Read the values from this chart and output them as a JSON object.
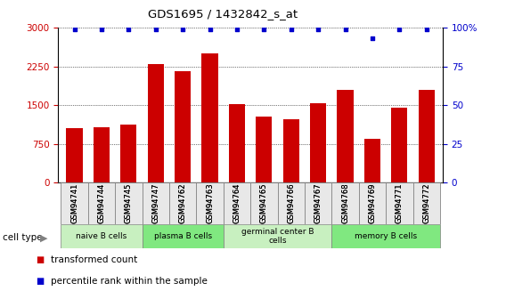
{
  "title": "GDS1695 / 1432842_s_at",
  "samples": [
    "GSM94741",
    "GSM94744",
    "GSM94745",
    "GSM94747",
    "GSM94762",
    "GSM94763",
    "GSM94764",
    "GSM94765",
    "GSM94766",
    "GSM94767",
    "GSM94768",
    "GSM94769",
    "GSM94771",
    "GSM94772"
  ],
  "transformed_count": [
    1050,
    1080,
    1130,
    2300,
    2150,
    2500,
    1520,
    1280,
    1220,
    1540,
    1800,
    850,
    1450,
    1800
  ],
  "percentile_rank": [
    99,
    99,
    99,
    99,
    99,
    99,
    99,
    99,
    99,
    99,
    99,
    93,
    99,
    99
  ],
  "ylim_left": [
    0,
    3000
  ],
  "ylim_right": [
    0,
    100
  ],
  "yticks_left": [
    0,
    750,
    1500,
    2250,
    3000
  ],
  "yticks_right": [
    0,
    25,
    50,
    75,
    100
  ],
  "cell_type_groups": [
    {
      "label": "naive B cells",
      "start": 0,
      "end": 2,
      "color": "#c8f0c0"
    },
    {
      "label": "plasma B cells",
      "start": 3,
      "end": 5,
      "color": "#80e880"
    },
    {
      "label": "germinal center B\ncells",
      "start": 6,
      "end": 9,
      "color": "#c8f0c0"
    },
    {
      "label": "memory B cells",
      "start": 10,
      "end": 13,
      "color": "#80e880"
    }
  ],
  "bar_color": "#cc0000",
  "dot_color": "#0000cc",
  "left_tick_color": "#cc0000",
  "right_tick_color": "#0000cc",
  "background_color": "#ffffff",
  "cell_type_label": "cell type",
  "legend_bar_label": "transformed count",
  "legend_dot_label": "percentile rank within the sample"
}
